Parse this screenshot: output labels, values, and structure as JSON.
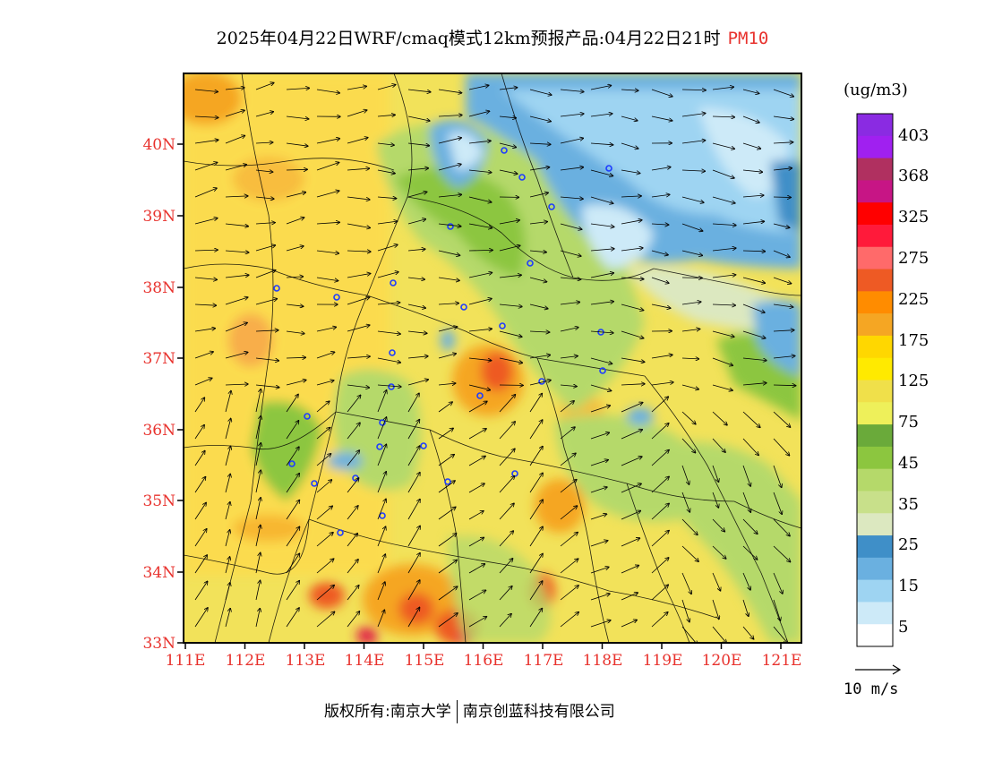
{
  "header": {
    "title": "2025年04月22日WRF/cmaq模式12km预报产品:04月22日21时",
    "pollutant": "PM10"
  },
  "map": {
    "lat_labels": [
      "40N",
      "39N",
      "38N",
      "37N",
      "36N",
      "35N",
      "34N",
      "33N"
    ],
    "lon_labels": [
      "111E",
      "112E",
      "113E",
      "114E",
      "115E",
      "116E",
      "117E",
      "118E",
      "119E",
      "120E",
      "121E"
    ],
    "extent": {
      "lon_min": 110.95,
      "lon_max": 121.3,
      "lat_min": 33.0,
      "lat_max": 40.95
    }
  },
  "colorbar": {
    "units": "(ug/m3)",
    "labels": [
      "403",
      "368",
      "325",
      "275",
      "225",
      "175",
      "125",
      "75",
      "45",
      "35",
      "25",
      "15",
      "5"
    ],
    "colors": [
      "#8a2be2",
      "#a020f0",
      "#b03060",
      "#c71585",
      "#ff0000",
      "#ff1a3a",
      "#ff6a6a",
      "#ee5a24",
      "#ff8c00",
      "#f5a623",
      "#ffd700",
      "#ffea00",
      "#f0e04a",
      "#eef05a",
      "#6aaa3a",
      "#8cc63f",
      "#b5d96a",
      "#c8e08a",
      "#dce8c0",
      "#3f8fc8",
      "#6ab0e0",
      "#9ed4f2",
      "#cdeaf8",
      "#ffffff"
    ]
  },
  "wind_reference": {
    "label": "10 m/s"
  },
  "footer": {
    "copyright": "版权所有:南京大学",
    "company": "南京创蓝科技有限公司"
  },
  "colors": {
    "axis_label": "#e8322d",
    "title_accent": "#e8322d"
  }
}
